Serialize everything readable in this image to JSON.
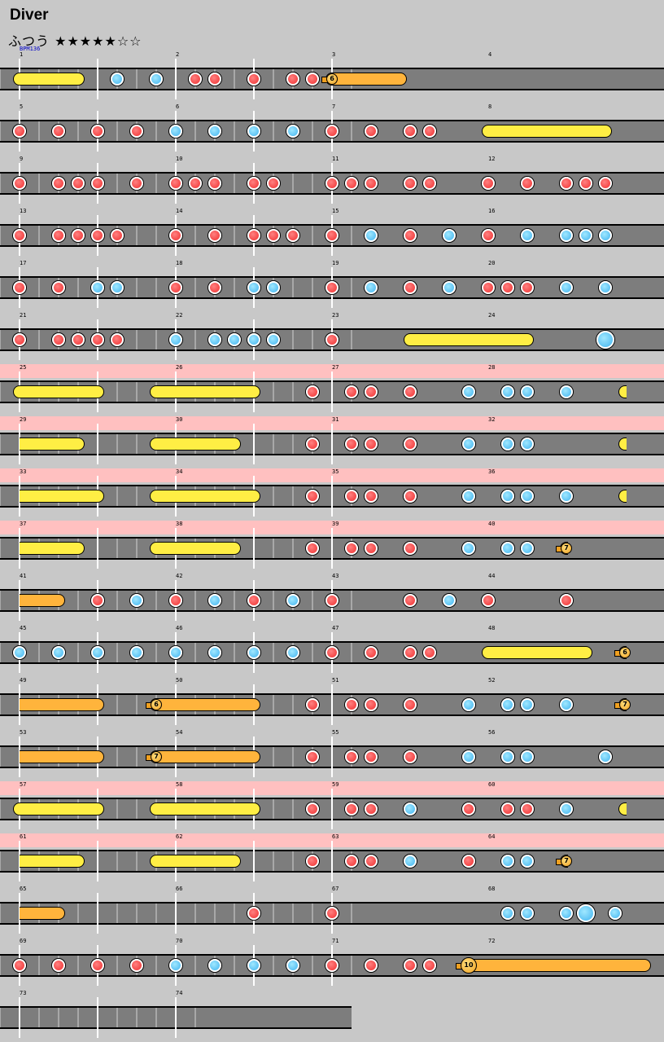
{
  "song": {
    "title": "Diver",
    "difficulty": "ふつう",
    "stars": "★★★★★☆☆",
    "bpm_label": "BPM136"
  },
  "colors": {
    "background": "#c8c8c8",
    "lane": "#7d7d7d",
    "gogo": "#ffc0c0",
    "don": "#f03030",
    "ka": "#42b4f0",
    "roll": "#ffee44",
    "balloon": "#ffb43c"
  },
  "chart_data": {
    "beats_per_measure": 4,
    "bpm": 136,
    "rows": [
      {
        "first": 1,
        "measures": 4,
        "notes": [
          {
            "t": "roll",
            "s": 0,
            "e": 3
          },
          {
            "t": "ka",
            "p": 5
          },
          {
            "t": "ka",
            "p": 7
          },
          {
            "t": "don",
            "p": 9
          },
          {
            "t": "don",
            "p": 10
          },
          {
            "t": "don",
            "p": 12
          },
          {
            "t": "don",
            "p": 14
          },
          {
            "t": "don",
            "p": 15
          },
          {
            "t": "balloon",
            "s": 16,
            "e": 19.5,
            "n": "6"
          }
        ]
      },
      {
        "first": 5,
        "measures": 4,
        "notes": [
          {
            "t": "don",
            "p": 0
          },
          {
            "t": "don",
            "p": 2
          },
          {
            "t": "don",
            "p": 4
          },
          {
            "t": "don",
            "p": 6
          },
          {
            "t": "ka",
            "p": 8
          },
          {
            "t": "ka",
            "p": 10
          },
          {
            "t": "ka",
            "p": 12
          },
          {
            "t": "ka",
            "p": 14
          },
          {
            "t": "don",
            "p": 16
          },
          {
            "t": "don",
            "p": 18
          },
          {
            "t": "don",
            "p": 20
          },
          {
            "t": "don",
            "p": 21
          },
          {
            "t": "roll",
            "s": 24,
            "e": 30
          }
        ]
      },
      {
        "first": 9,
        "measures": 4,
        "notes": [
          {
            "t": "don",
            "p": 0
          },
          {
            "t": "don",
            "p": 2
          },
          {
            "t": "don",
            "p": 3
          },
          {
            "t": "don",
            "p": 4
          },
          {
            "t": "don",
            "p": 6
          },
          {
            "t": "don",
            "p": 8
          },
          {
            "t": "don",
            "p": 9
          },
          {
            "t": "don",
            "p": 10
          },
          {
            "t": "don",
            "p": 12
          },
          {
            "t": "don",
            "p": 13
          },
          {
            "t": "don",
            "p": 16
          },
          {
            "t": "don",
            "p": 17
          },
          {
            "t": "don",
            "p": 18
          },
          {
            "t": "don",
            "p": 20
          },
          {
            "t": "don",
            "p": 21
          },
          {
            "t": "don",
            "p": 24
          },
          {
            "t": "don",
            "p": 26
          },
          {
            "t": "don",
            "p": 28
          },
          {
            "t": "don",
            "p": 29
          },
          {
            "t": "don",
            "p": 30
          }
        ]
      },
      {
        "first": 13,
        "measures": 4,
        "notes": [
          {
            "t": "don",
            "p": 0
          },
          {
            "t": "don",
            "p": 2
          },
          {
            "t": "don",
            "p": 3
          },
          {
            "t": "don",
            "p": 4
          },
          {
            "t": "don",
            "p": 5
          },
          {
            "t": "don",
            "p": 8
          },
          {
            "t": "don",
            "p": 10
          },
          {
            "t": "don",
            "p": 12
          },
          {
            "t": "don",
            "p": 13
          },
          {
            "t": "don",
            "p": 14
          },
          {
            "t": "don",
            "p": 16
          },
          {
            "t": "ka",
            "p": 18
          },
          {
            "t": "don",
            "p": 20
          },
          {
            "t": "ka",
            "p": 22
          },
          {
            "t": "don",
            "p": 24
          },
          {
            "t": "ka",
            "p": 26
          },
          {
            "t": "ka",
            "p": 28
          },
          {
            "t": "ka",
            "p": 29
          },
          {
            "t": "ka",
            "p": 30
          }
        ]
      },
      {
        "first": 17,
        "measures": 4,
        "notes": [
          {
            "t": "don",
            "p": 0
          },
          {
            "t": "don",
            "p": 2
          },
          {
            "t": "ka",
            "p": 4
          },
          {
            "t": "ka",
            "p": 5
          },
          {
            "t": "don",
            "p": 8
          },
          {
            "t": "don",
            "p": 10
          },
          {
            "t": "ka",
            "p": 12
          },
          {
            "t": "ka",
            "p": 13
          },
          {
            "t": "don",
            "p": 16
          },
          {
            "t": "ka",
            "p": 18
          },
          {
            "t": "don",
            "p": 20
          },
          {
            "t": "ka",
            "p": 22
          },
          {
            "t": "don",
            "p": 24
          },
          {
            "t": "don",
            "p": 25
          },
          {
            "t": "don",
            "p": 26
          },
          {
            "t": "ka",
            "p": 28
          },
          {
            "t": "ka",
            "p": 30
          }
        ]
      },
      {
        "first": 21,
        "measures": 4,
        "notes": [
          {
            "t": "don",
            "p": 0
          },
          {
            "t": "don",
            "p": 2
          },
          {
            "t": "don",
            "p": 3
          },
          {
            "t": "don",
            "p": 4
          },
          {
            "t": "don",
            "p": 5
          },
          {
            "t": "ka",
            "p": 8
          },
          {
            "t": "ka",
            "p": 10
          },
          {
            "t": "ka",
            "p": 11
          },
          {
            "t": "ka",
            "p": 12
          },
          {
            "t": "ka",
            "p": 13
          },
          {
            "t": "don",
            "p": 16
          },
          {
            "t": "roll",
            "s": 20,
            "e": 26
          },
          {
            "t": "ka",
            "p": 30,
            "big": true
          }
        ]
      },
      {
        "first": 25,
        "measures": 4,
        "gogo": true,
        "notes": [
          {
            "t": "roll",
            "s": 0,
            "e": 4
          },
          {
            "t": "roll",
            "s": 7,
            "e": 12
          },
          {
            "t": "don",
            "p": 15
          },
          {
            "t": "don",
            "p": 17
          },
          {
            "t": "don",
            "p": 18
          },
          {
            "t": "don",
            "p": 20
          },
          {
            "t": "ka",
            "p": 23
          },
          {
            "t": "ka",
            "p": 25
          },
          {
            "t": "ka",
            "p": 26
          },
          {
            "t": "ka",
            "p": 28
          },
          {
            "t": "roll",
            "s": 31,
            "e": 32,
            "cut": true
          }
        ]
      },
      {
        "first": 29,
        "measures": 4,
        "gogo": true,
        "notes": [
          {
            "t": "roll",
            "s": 0,
            "e": 3,
            "cutl": true
          },
          {
            "t": "roll",
            "s": 7,
            "e": 11
          },
          {
            "t": "don",
            "p": 15
          },
          {
            "t": "don",
            "p": 17
          },
          {
            "t": "don",
            "p": 18
          },
          {
            "t": "don",
            "p": 20
          },
          {
            "t": "ka",
            "p": 23
          },
          {
            "t": "ka",
            "p": 25
          },
          {
            "t": "ka",
            "p": 26
          },
          {
            "t": "roll",
            "s": 31,
            "e": 32,
            "cut": true
          }
        ]
      },
      {
        "first": 33,
        "measures": 4,
        "gogo": true,
        "notes": [
          {
            "t": "roll",
            "s": 0,
            "e": 4,
            "cutl": true
          },
          {
            "t": "roll",
            "s": 7,
            "e": 12
          },
          {
            "t": "don",
            "p": 15
          },
          {
            "t": "don",
            "p": 17
          },
          {
            "t": "don",
            "p": 18
          },
          {
            "t": "don",
            "p": 20
          },
          {
            "t": "ka",
            "p": 23
          },
          {
            "t": "ka",
            "p": 25
          },
          {
            "t": "ka",
            "p": 26
          },
          {
            "t": "ka",
            "p": 28
          },
          {
            "t": "roll",
            "s": 31,
            "e": 32,
            "cut": true
          }
        ]
      },
      {
        "first": 37,
        "measures": 4,
        "gogo": true,
        "notes": [
          {
            "t": "roll",
            "s": 0,
            "e": 3,
            "cutl": true
          },
          {
            "t": "roll",
            "s": 7,
            "e": 11
          },
          {
            "t": "don",
            "p": 15
          },
          {
            "t": "don",
            "p": 17
          },
          {
            "t": "don",
            "p": 18
          },
          {
            "t": "don",
            "p": 20
          },
          {
            "t": "ka",
            "p": 23
          },
          {
            "t": "ka",
            "p": 25
          },
          {
            "t": "ka",
            "p": 26
          },
          {
            "t": "balloon",
            "s": 28,
            "e": 32,
            "n": "7",
            "cut": true
          }
        ]
      },
      {
        "first": 41,
        "measures": 4,
        "notes": [
          {
            "t": "balloon",
            "s": 0,
            "e": 2,
            "cutl": true
          },
          {
            "t": "don",
            "p": 4
          },
          {
            "t": "ka",
            "p": 6
          },
          {
            "t": "don",
            "p": 8
          },
          {
            "t": "ka",
            "p": 10
          },
          {
            "t": "don",
            "p": 12
          },
          {
            "t": "ka",
            "p": 14
          },
          {
            "t": "don",
            "p": 16
          },
          {
            "t": "don",
            "p": 20
          },
          {
            "t": "ka",
            "p": 22
          },
          {
            "t": "don",
            "p": 24
          },
          {
            "t": "don",
            "p": 28
          }
        ]
      },
      {
        "first": 45,
        "measures": 4,
        "notes": [
          {
            "t": "ka",
            "p": 0
          },
          {
            "t": "ka",
            "p": 2
          },
          {
            "t": "ka",
            "p": 4
          },
          {
            "t": "ka",
            "p": 6
          },
          {
            "t": "ka",
            "p": 8
          },
          {
            "t": "ka",
            "p": 10
          },
          {
            "t": "ka",
            "p": 12
          },
          {
            "t": "ka",
            "p": 14
          },
          {
            "t": "don",
            "p": 16
          },
          {
            "t": "don",
            "p": 18
          },
          {
            "t": "don",
            "p": 20
          },
          {
            "t": "don",
            "p": 21
          },
          {
            "t": "roll",
            "s": 24,
            "e": 29
          },
          {
            "t": "balloon",
            "s": 31,
            "e": 32,
            "n": "6",
            "cut": true
          }
        ]
      },
      {
        "first": 49,
        "measures": 4,
        "notes": [
          {
            "t": "balloon",
            "s": 0,
            "e": 4,
            "cutl": true
          },
          {
            "t": "balloon",
            "s": 7,
            "e": 12,
            "n": "6"
          },
          {
            "t": "don",
            "p": 15
          },
          {
            "t": "don",
            "p": 17
          },
          {
            "t": "don",
            "p": 18
          },
          {
            "t": "don",
            "p": 20
          },
          {
            "t": "ka",
            "p": 23
          },
          {
            "t": "ka",
            "p": 25
          },
          {
            "t": "ka",
            "p": 26
          },
          {
            "t": "ka",
            "p": 28
          },
          {
            "t": "balloon",
            "s": 31,
            "e": 32,
            "n": "7",
            "cut": true
          }
        ]
      },
      {
        "first": 53,
        "measures": 4,
        "notes": [
          {
            "t": "balloon",
            "s": 0,
            "e": 4,
            "cutl": true
          },
          {
            "t": "balloon",
            "s": 7,
            "e": 12,
            "n": "7"
          },
          {
            "t": "don",
            "p": 15
          },
          {
            "t": "don",
            "p": 17
          },
          {
            "t": "don",
            "p": 18
          },
          {
            "t": "don",
            "p": 20
          },
          {
            "t": "ka",
            "p": 23
          },
          {
            "t": "ka",
            "p": 25
          },
          {
            "t": "ka",
            "p": 26
          },
          {
            "t": "ka",
            "p": 30
          }
        ]
      },
      {
        "first": 57,
        "measures": 4,
        "gogo": true,
        "notes": [
          {
            "t": "roll",
            "s": 0,
            "e": 4
          },
          {
            "t": "roll",
            "s": 7,
            "e": 12
          },
          {
            "t": "don",
            "p": 15
          },
          {
            "t": "don",
            "p": 17
          },
          {
            "t": "don",
            "p": 18
          },
          {
            "t": "ka",
            "p": 20
          },
          {
            "t": "don",
            "p": 23
          },
          {
            "t": "don",
            "p": 25
          },
          {
            "t": "don",
            "p": 26
          },
          {
            "t": "ka",
            "p": 28
          },
          {
            "t": "roll",
            "s": 31,
            "e": 32,
            "cut": true
          }
        ]
      },
      {
        "first": 61,
        "measures": 4,
        "gogo": true,
        "notes": [
          {
            "t": "roll",
            "s": 0,
            "e": 3,
            "cutl": true
          },
          {
            "t": "roll",
            "s": 7,
            "e": 11
          },
          {
            "t": "don",
            "p": 15
          },
          {
            "t": "don",
            "p": 17
          },
          {
            "t": "don",
            "p": 18
          },
          {
            "t": "ka",
            "p": 20
          },
          {
            "t": "don",
            "p": 23
          },
          {
            "t": "ka",
            "p": 25
          },
          {
            "t": "ka",
            "p": 26
          },
          {
            "t": "balloon",
            "s": 28,
            "e": 32,
            "n": "7",
            "cut": true
          }
        ]
      },
      {
        "first": 65,
        "measures": 4,
        "notes": [
          {
            "t": "balloon",
            "s": 0,
            "e": 2,
            "cutl": true
          },
          {
            "t": "don",
            "p": 12
          },
          {
            "t": "don",
            "p": 16
          },
          {
            "t": "ka",
            "p": 25
          },
          {
            "t": "ka",
            "p": 26
          },
          {
            "t": "ka",
            "p": 28
          },
          {
            "t": "ka",
            "p": 29,
            "big": true
          },
          {
            "t": "ka",
            "p": 30.5
          }
        ]
      },
      {
        "first": 69,
        "measures": 4,
        "notes": [
          {
            "t": "don",
            "p": 0
          },
          {
            "t": "don",
            "p": 2
          },
          {
            "t": "don",
            "p": 4
          },
          {
            "t": "don",
            "p": 6
          },
          {
            "t": "ka",
            "p": 8
          },
          {
            "t": "ka",
            "p": 10
          },
          {
            "t": "ka",
            "p": 12
          },
          {
            "t": "ka",
            "p": 14
          },
          {
            "t": "don",
            "p": 16
          },
          {
            "t": "don",
            "p": 18
          },
          {
            "t": "don",
            "p": 20
          },
          {
            "t": "don",
            "p": 21
          },
          {
            "t": "balloon",
            "s": 23,
            "e": 32,
            "n": "10",
            "big": true
          }
        ]
      },
      {
        "first": 73,
        "measures": 2,
        "notes": []
      }
    ]
  }
}
